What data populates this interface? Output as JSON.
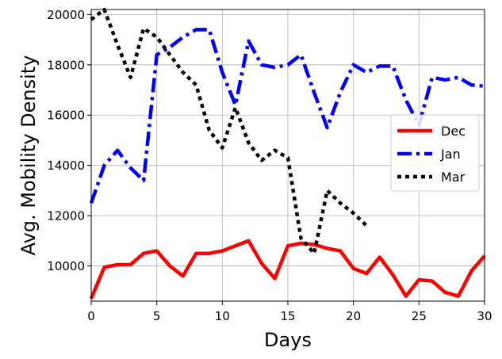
{
  "chart_data": {
    "type": "line",
    "title": "",
    "xlabel": "Days",
    "ylabel": "Avg. Mobility Density",
    "xlim": [
      0,
      30
    ],
    "ylim": [
      8600,
      20200
    ],
    "xticks": [
      0,
      5,
      10,
      15,
      20,
      25,
      30
    ],
    "yticks": [
      10000,
      12000,
      14000,
      16000,
      18000,
      20000
    ],
    "grid": true,
    "legend_position": "center-right",
    "series": [
      {
        "name": "Dec",
        "color": "#ff0000",
        "style": "solid",
        "x": [
          0,
          1,
          2,
          3,
          4,
          5,
          6,
          7,
          8,
          9,
          10,
          11,
          12,
          13,
          14,
          15,
          16,
          17,
          18,
          19,
          20,
          21,
          22,
          23,
          24,
          25,
          26,
          27,
          28,
          29,
          30
        ],
        "values": [
          8700,
          9950,
          10050,
          10050,
          10500,
          10600,
          10000,
          9600,
          10500,
          10500,
          10600,
          10800,
          11000,
          10100,
          9500,
          10800,
          10900,
          10850,
          10700,
          10600,
          9900,
          9700,
          10350,
          9650,
          8800,
          9450,
          9400,
          8950,
          8800,
          9800,
          10400
        ]
      },
      {
        "name": "Jan",
        "color": "#0000ff",
        "style": "dashdot",
        "x": [
          0,
          1,
          2,
          3,
          4,
          5,
          6,
          7,
          8,
          9,
          10,
          11,
          12,
          13,
          14,
          15,
          16,
          17,
          18,
          19,
          20,
          21,
          22,
          23,
          24,
          25,
          26,
          27,
          28,
          29,
          30
        ],
        "values": [
          12500,
          14000,
          14600,
          13900,
          13400,
          18400,
          18700,
          19100,
          19400,
          19400,
          17700,
          16400,
          18950,
          18000,
          17900,
          18000,
          18400,
          16900,
          15500,
          16900,
          18000,
          17700,
          17950,
          17950,
          16600,
          15600,
          17500,
          17400,
          17500,
          17200,
          17150
        ]
      },
      {
        "name": "Mar",
        "color": "#000000",
        "style": "dotted",
        "x": [
          0,
          1,
          2,
          3,
          4,
          5,
          6,
          7,
          8,
          9,
          10,
          11,
          12,
          13,
          14,
          15,
          16,
          17,
          18,
          19,
          20,
          21
        ],
        "values": [
          19800,
          20200,
          18800,
          17500,
          19450,
          19100,
          18400,
          17700,
          17200,
          15400,
          14700,
          16300,
          14900,
          14200,
          14600,
          14300,
          11100,
          10500,
          13000,
          12500,
          12100,
          11600
        ]
      }
    ]
  }
}
